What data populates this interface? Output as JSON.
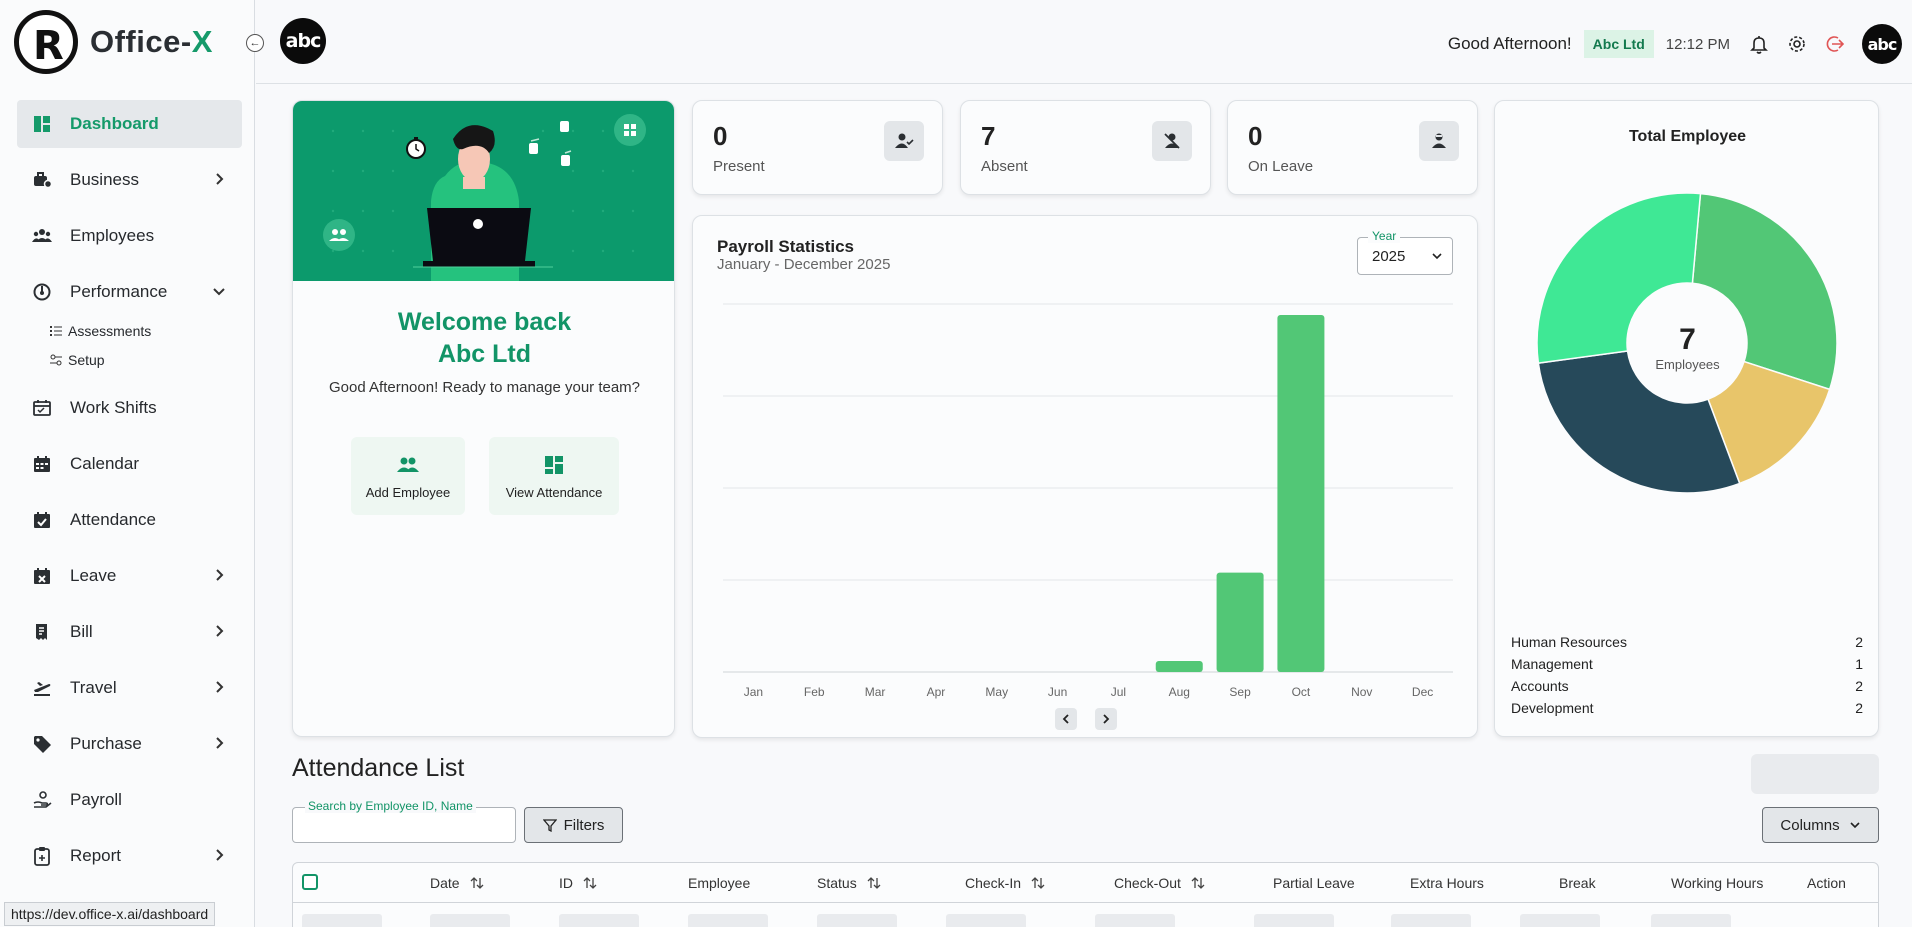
{
  "brand": {
    "name_main": "Office-",
    "name_accent": "X"
  },
  "sidebar": {
    "items": [
      {
        "label": "Dashboard",
        "icon": "dashboard-icon",
        "active": true
      },
      {
        "label": "Business",
        "icon": "briefcase-icon",
        "chevron": "right"
      },
      {
        "label": "Employees",
        "icon": "people-icon"
      },
      {
        "label": "Performance",
        "icon": "gauge-icon",
        "chevron": "down"
      },
      {
        "label": "Work Shifts",
        "icon": "shift-icon"
      },
      {
        "label": "Calendar",
        "icon": "calendar-icon"
      },
      {
        "label": "Attendance",
        "icon": "calendar-check-icon"
      },
      {
        "label": "Leave",
        "icon": "calendar-x-icon",
        "chevron": "right"
      },
      {
        "label": "Bill",
        "icon": "receipt-icon",
        "chevron": "right"
      },
      {
        "label": "Travel",
        "icon": "plane-icon",
        "chevron": "right"
      },
      {
        "label": "Purchase",
        "icon": "tag-icon",
        "chevron": "right"
      },
      {
        "label": "Payroll",
        "icon": "hand-coin-icon"
      },
      {
        "label": "Report",
        "icon": "clipboard-icon",
        "chevron": "right"
      }
    ],
    "performance_sub": [
      {
        "label": "Assessments",
        "icon": "list-icon"
      },
      {
        "label": "Setup",
        "icon": "sliders-icon"
      }
    ]
  },
  "status_url": "https://dev.office-x.ai/dashboard",
  "topbar": {
    "company_logo_text": "abc",
    "greeting": "Good Afternoon!",
    "company_badge": "Abc Ltd",
    "time": "12:12 PM",
    "avatar_text": "abc"
  },
  "welcome": {
    "title_line1": "Welcome back",
    "title_line2": "Abc Ltd",
    "subtitle": "Good Afternoon! Ready to manage your team?",
    "add_employee": "Add Employee",
    "view_attendance": "View Attendance"
  },
  "stats": [
    {
      "value": "0",
      "label": "Present",
      "icon": "user-check-icon"
    },
    {
      "value": "7",
      "label": "Absent",
      "icon": "user-off-icon"
    },
    {
      "value": "0",
      "label": "On Leave",
      "icon": "user-leave-icon"
    }
  ],
  "payroll": {
    "title": "Payroll Statistics",
    "subtitle": "January - December 2025",
    "year_label": "Year",
    "year_value": "2025"
  },
  "total_employee": {
    "title": "Total Employee",
    "center_value": "7",
    "center_label": "Employees"
  },
  "attendance": {
    "title": "Attendance List",
    "search_label": "Search by Employee ID, Name",
    "search_value": "",
    "filters": "Filters",
    "columns": "Columns",
    "headers": [
      "Date",
      "ID",
      "Employee",
      "Status",
      "Check-In",
      "Check-Out",
      "Partial Leave",
      "Extra Hours",
      "Break",
      "Working Hours",
      "Action"
    ]
  },
  "colors": {
    "accent": "#129467",
    "bar": "#52c776",
    "donut": [
      "#52c776",
      "#e8c56a",
      "#26495a",
      "#3fe895"
    ]
  },
  "chart_data": [
    {
      "type": "bar",
      "categories": [
        "Jan",
        "Feb",
        "Mar",
        "Apr",
        "May",
        "Jun",
        "Jul",
        "Aug",
        "Sep",
        "Oct",
        "Nov",
        "Dec"
      ],
      "values": [
        0,
        0,
        0,
        0,
        0,
        0,
        0,
        3,
        27,
        97,
        0,
        0
      ],
      "ylim": [
        0,
        100
      ],
      "grid": true
    },
    {
      "type": "pie",
      "categories": [
        "Human Resources",
        "Management",
        "Accounts",
        "Development"
      ],
      "values": [
        2,
        1,
        2,
        2
      ],
      "donut": true
    }
  ]
}
